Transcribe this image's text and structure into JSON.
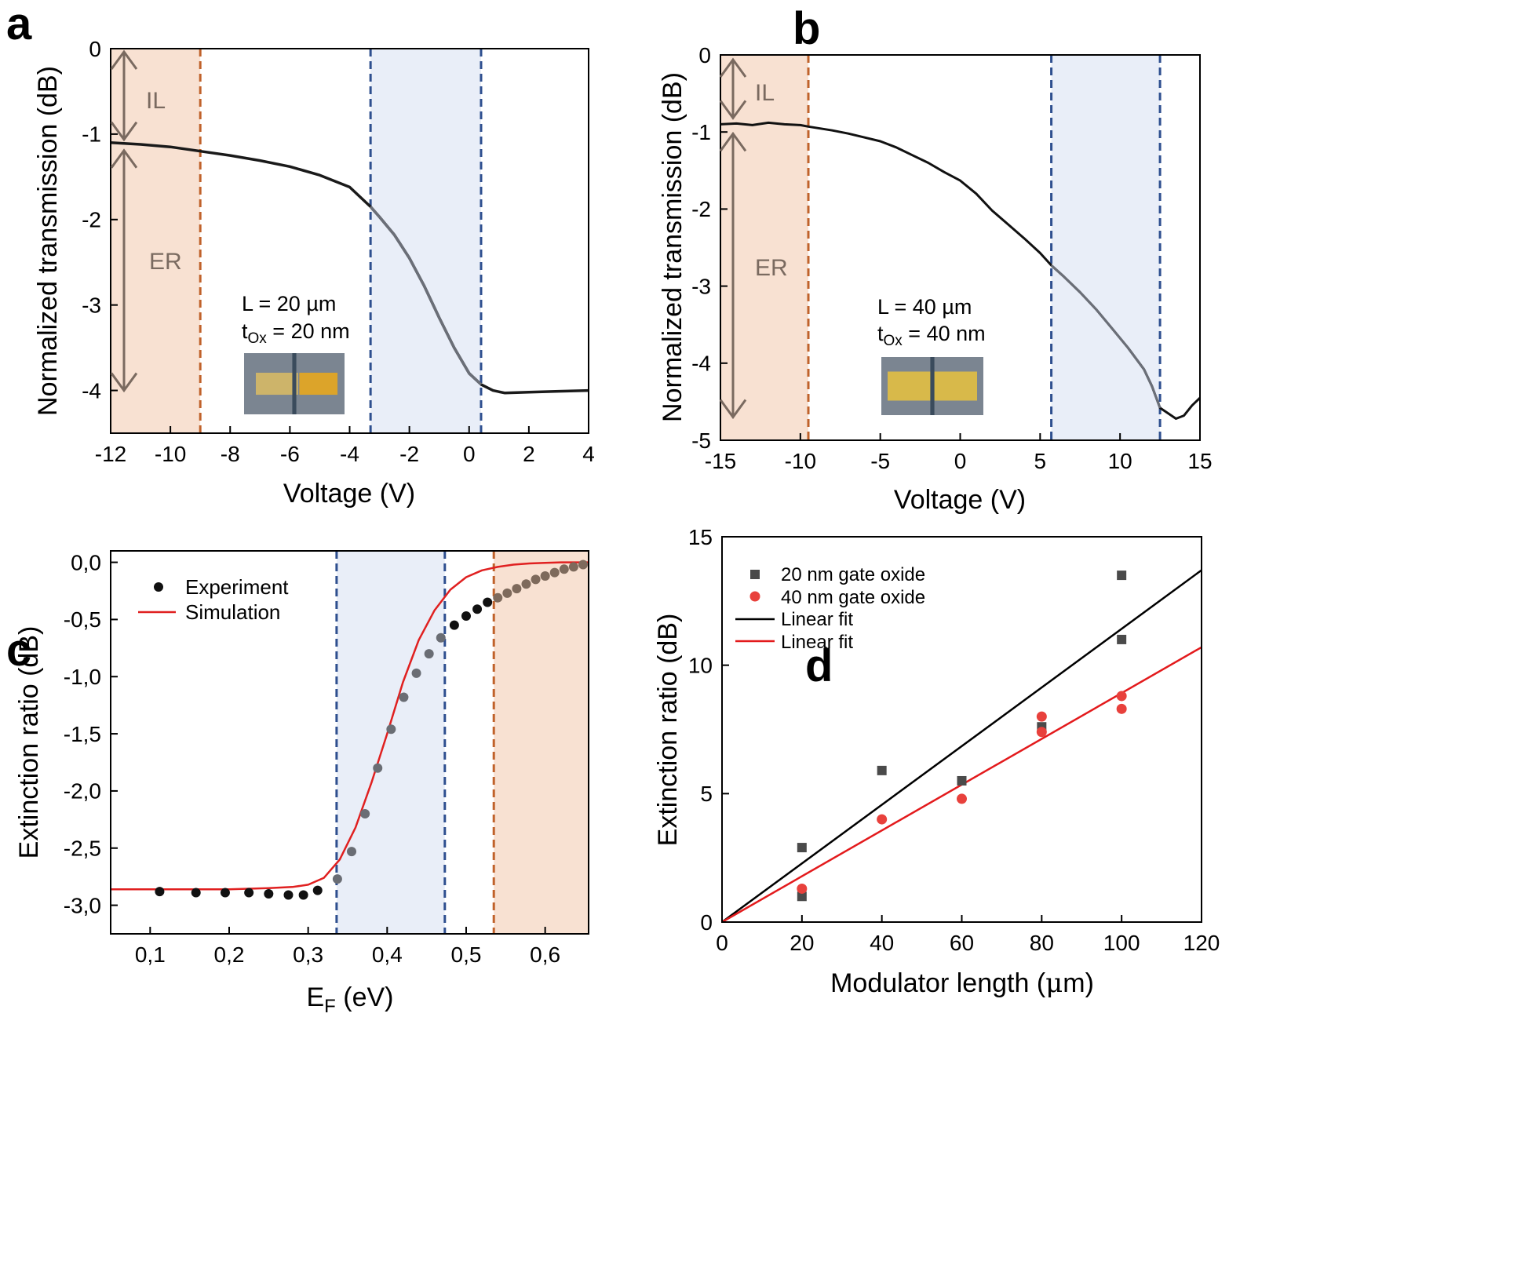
{
  "chart_data": [
    {
      "panel": "a",
      "type": "line",
      "xlabel": "Voltage (V)",
      "ylabel": "Normalized transmission (dB)",
      "xlim": [
        -12,
        4
      ],
      "ylim": [
        -4.5,
        0
      ],
      "xticks": [
        "-12",
        "-10",
        "-8",
        "-6",
        "-4",
        "-2",
        "0",
        "2",
        "4"
      ],
      "yticks": [
        "0",
        "-1",
        "-2",
        "-3",
        "-4"
      ],
      "shaded_regions": [
        {
          "name": "IL/ER region",
          "x_from": -12,
          "x_to": -9,
          "color": "#f8e1d2",
          "line_color": "#c0622b"
        },
        {
          "name": "operating region",
          "x_from": -3.3,
          "x_to": 0.4,
          "color": "#e9eef8",
          "line_color": "#2e4f8f"
        }
      ],
      "annotations": {
        "il": "IL",
        "er": "ER",
        "il_range": [
          0,
          -1.1
        ],
        "er_range": [
          -1.1,
          -4.0
        ],
        "length": "L = 20 µm",
        "tox_prefix": "t",
        "tox_sub": "Ox",
        "tox_rest": " = 20 nm",
        "inset": "device micrograph"
      },
      "series": [
        {
          "name": "Transmission",
          "color": "#111111",
          "x": [
            -12,
            -11,
            -10,
            -9,
            -8,
            -7,
            -6,
            -5,
            -4,
            -3.3,
            -3,
            -2.5,
            -2,
            -1.5,
            -1,
            -0.5,
            0,
            0.4,
            0.8,
            1.2,
            2,
            3,
            4
          ],
          "y": [
            -1.1,
            -1.12,
            -1.15,
            -1.2,
            -1.25,
            -1.31,
            -1.38,
            -1.48,
            -1.62,
            -1.85,
            -1.97,
            -2.18,
            -2.45,
            -2.78,
            -3.15,
            -3.5,
            -3.8,
            -3.93,
            -4.0,
            -4.03,
            -4.02,
            -4.01,
            -4.0
          ]
        }
      ]
    },
    {
      "panel": "b",
      "type": "line",
      "xlabel": "Voltage (V)",
      "ylabel": "Normalized transmission (dB)",
      "xlim": [
        -15,
        15
      ],
      "ylim": [
        -5,
        0
      ],
      "xticks": [
        "-15",
        "-10",
        "-5",
        "0",
        "5",
        "10",
        "15"
      ],
      "yticks": [
        "0",
        "-1",
        "-2",
        "-3",
        "-4",
        "-5"
      ],
      "shaded_regions": [
        {
          "name": "IL/ER region",
          "x_from": -15,
          "x_to": -9.5,
          "color": "#f8e1d2",
          "line_color": "#c0622b"
        },
        {
          "name": "operating region",
          "x_from": 5.7,
          "x_to": 12.5,
          "color": "#e9eef8",
          "line_color": "#2e4f8f"
        }
      ],
      "annotations": {
        "il": "IL",
        "er": "ER",
        "il_range": [
          0,
          -0.9
        ],
        "er_range": [
          -0.9,
          -4.7
        ],
        "length": "L = 40 µm",
        "tox_prefix": "t",
        "tox_sub": "Ox",
        "tox_rest": " = 40 nm",
        "inset": "device micrograph"
      },
      "series": [
        {
          "name": "Transmission",
          "color": "#111111",
          "x": [
            -15,
            -14,
            -13,
            -12,
            -11,
            -10,
            -9.5,
            -8,
            -7,
            -6,
            -5,
            -4,
            -3,
            -2,
            -1,
            0,
            1,
            2,
            3,
            4,
            5,
            5.7,
            6.5,
            7.5,
            8.5,
            9.5,
            10.5,
            11.5,
            12,
            12.5,
            13,
            13.5,
            14,
            14.5,
            15
          ],
          "y": [
            -0.9,
            -0.89,
            -0.91,
            -0.88,
            -0.9,
            -0.91,
            -0.93,
            -0.98,
            -1.02,
            -1.07,
            -1.12,
            -1.2,
            -1.3,
            -1.4,
            -1.52,
            -1.63,
            -1.8,
            -2.02,
            -2.2,
            -2.38,
            -2.57,
            -2.73,
            -2.88,
            -3.08,
            -3.3,
            -3.55,
            -3.8,
            -4.08,
            -4.3,
            -4.58,
            -4.65,
            -4.72,
            -4.68,
            -4.55,
            -4.45
          ]
        }
      ]
    },
    {
      "panel": "c",
      "type": "scatter",
      "xlabel_main": "E",
      "xlabel_sub": "F",
      "xlabel_unit": " (eV)",
      "ylabel": "Extinction ratio (dB)",
      "xlim": [
        0.05,
        0.655
      ],
      "ylim": [
        -3.25,
        0.1
      ],
      "xticks": [
        "0,1",
        "0,2",
        "0,3",
        "0,4",
        "0,5",
        "0,6"
      ],
      "yticks": [
        "0,0",
        "-0,5",
        "-1,0",
        "-1,5",
        "-2,0",
        "-2,5",
        "-3,0"
      ],
      "shaded_regions": [
        {
          "name": "operating region",
          "x_from": 0.336,
          "x_to": 0.473,
          "color": "#e9eef8",
          "line_color": "#2e4f8f"
        },
        {
          "name": "IL region",
          "x_from": 0.535,
          "x_to": 0.655,
          "color": "#f8e1d2",
          "line_color": "#c0622b"
        }
      ],
      "legend": {
        "experiment": "Experiment",
        "simulation": "Simulation"
      },
      "series": [
        {
          "name": "Experiment",
          "color": "#111111",
          "x": [
            0.112,
            0.158,
            0.195,
            0.225,
            0.25,
            0.275,
            0.294,
            0.312,
            0.337,
            0.355,
            0.372,
            0.388,
            0.405,
            0.421,
            0.437,
            0.453,
            0.468,
            0.485,
            0.5,
            0.514,
            0.527,
            0.54,
            0.552,
            0.564,
            0.576,
            0.588,
            0.6,
            0.612,
            0.624,
            0.636,
            0.648
          ],
          "y": [
            -2.88,
            -2.89,
            -2.89,
            -2.89,
            -2.9,
            -2.91,
            -2.91,
            -2.87,
            -2.77,
            -2.53,
            -2.2,
            -1.8,
            -1.46,
            -1.18,
            -0.97,
            -0.8,
            -0.66,
            -0.55,
            -0.47,
            -0.41,
            -0.35,
            -0.31,
            -0.27,
            -0.23,
            -0.19,
            -0.15,
            -0.12,
            -0.09,
            -0.06,
            -0.04,
            -0.02
          ]
        },
        {
          "name": "Simulation",
          "color": "#e02020",
          "x": [
            0.05,
            0.1,
            0.15,
            0.2,
            0.25,
            0.28,
            0.3,
            0.32,
            0.34,
            0.36,
            0.38,
            0.4,
            0.42,
            0.44,
            0.46,
            0.48,
            0.5,
            0.52,
            0.54,
            0.56,
            0.58,
            0.6,
            0.62,
            0.655
          ],
          "y": [
            -2.86,
            -2.86,
            -2.86,
            -2.86,
            -2.85,
            -2.84,
            -2.82,
            -2.76,
            -2.6,
            -2.32,
            -1.93,
            -1.5,
            -1.05,
            -0.68,
            -0.42,
            -0.24,
            -0.13,
            -0.07,
            -0.04,
            -0.02,
            -0.01,
            -0.005,
            0,
            0
          ]
        }
      ]
    },
    {
      "panel": "d",
      "type": "scatter",
      "xlabel_main": "Modulator length (",
      "xlabel_mu": "μ",
      "xlabel_rest": "m)",
      "ylabel": "Extinction ratio (dB)",
      "xlim": [
        0,
        120
      ],
      "ylim": [
        0,
        15
      ],
      "xticks": [
        "0",
        "20",
        "40",
        "60",
        "80",
        "100",
        "120"
      ],
      "yticks": [
        "0",
        "5",
        "10",
        "15"
      ],
      "legend": [
        "20 nm gate oxide",
        "40 nm gate oxide",
        "Linear fit",
        "Linear fit"
      ],
      "series": [
        {
          "name": "20 nm gate oxide",
          "marker": "square",
          "color": "#4a4a4a",
          "x": [
            20,
            20,
            40,
            60,
            80,
            100,
            100
          ],
          "y": [
            2.9,
            1.0,
            5.9,
            5.5,
            7.6,
            13.5,
            11.0
          ]
        },
        {
          "name": "40 nm gate oxide",
          "marker": "circle",
          "color": "#e8413c",
          "x": [
            20,
            40,
            60,
            80,
            80,
            100,
            100
          ],
          "y": [
            1.3,
            4.0,
            4.8,
            8.0,
            7.4,
            8.8,
            8.3
          ]
        },
        {
          "name": "Linear fit",
          "line": true,
          "color": "#000000",
          "x": [
            0,
            120
          ],
          "y": [
            0,
            13.7
          ]
        },
        {
          "name": "Linear fit",
          "line": true,
          "color": "#e31a1c",
          "x": [
            0,
            120
          ],
          "y": [
            0,
            10.7
          ]
        }
      ]
    }
  ],
  "panel_labels": [
    "a",
    "b",
    "c",
    "d"
  ]
}
